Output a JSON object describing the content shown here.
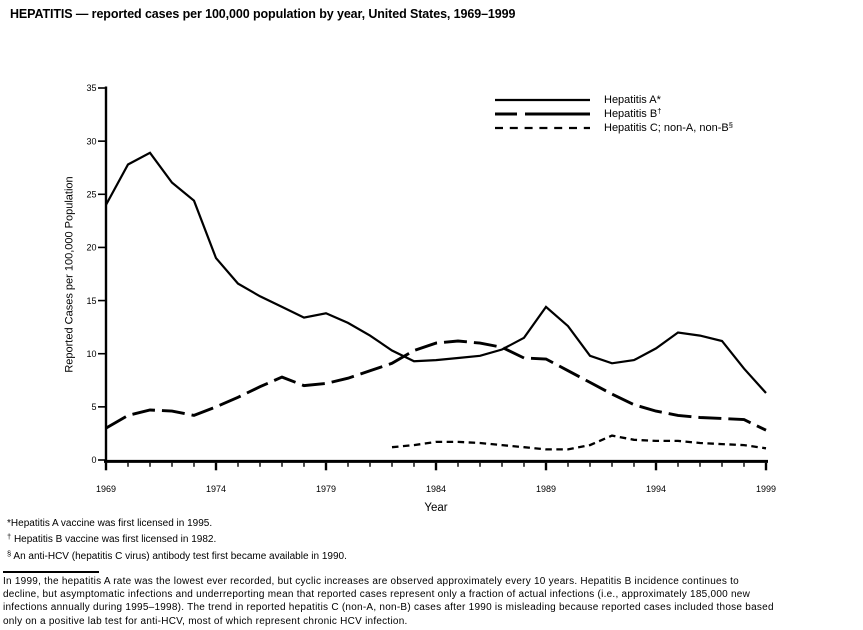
{
  "title": "HEPATITIS — reported cases per 100,000 population by year, United States, 1969–1999",
  "chart_data": {
    "type": "line",
    "title": "HEPATITIS — reported cases per 100,000 population by year, United States, 1969–1999",
    "xlabel": "Year",
    "ylabel": "Reported Cases per 100,000 Population",
    "xlim": [
      1969,
      1999
    ],
    "ylim": [
      0,
      35
    ],
    "y_ticks": [
      0,
      5,
      10,
      15,
      20,
      25,
      30,
      35
    ],
    "x_major_ticks": [
      1969,
      1974,
      1979,
      1984,
      1989,
      1994,
      1999
    ],
    "x_minor_tick_step": 1,
    "grid": false,
    "legend_position": "inside top-right",
    "line_color": "#000000",
    "series": [
      {
        "name": "Hepatitis A",
        "legend_label": "Hepatitis A*",
        "legend_sup": "",
        "line_style": "solid",
        "x_start": 1969,
        "x_step": 1,
        "values": [
          24.0,
          27.8,
          28.9,
          26.1,
          24.4,
          19.0,
          16.6,
          15.4,
          14.4,
          13.4,
          13.8,
          12.9,
          11.7,
          10.3,
          9.3,
          9.4,
          9.6,
          9.8,
          10.4,
          11.5,
          14.4,
          12.6,
          9.8,
          9.1,
          9.4,
          10.5,
          12.0,
          11.7,
          11.2,
          8.6,
          6.3
        ]
      },
      {
        "name": "Hepatitis B",
        "legend_label": "Hepatitis B",
        "legend_sup": "†",
        "line_style": "long-dash",
        "x_start": 1969,
        "x_step": 1,
        "values": [
          3.0,
          4.2,
          4.7,
          4.6,
          4.2,
          5.0,
          5.9,
          6.9,
          7.8,
          7.0,
          7.2,
          7.7,
          8.4,
          9.1,
          10.3,
          11.0,
          11.2,
          11.0,
          10.6,
          9.6,
          9.5,
          8.4,
          7.3,
          6.2,
          5.2,
          4.6,
          4.2,
          4.0,
          3.9,
          3.8,
          2.8
        ]
      },
      {
        "name": "Hepatitis C; non-A, non-B",
        "legend_label": "Hepatitis C; non-A, non-B",
        "legend_sup": "§",
        "line_style": "short-dash",
        "x_start": 1982,
        "x_step": 1,
        "values": [
          1.2,
          1.4,
          1.7,
          1.7,
          1.6,
          1.4,
          1.2,
          1.0,
          1.0,
          1.4,
          2.3,
          1.9,
          1.8,
          1.8,
          1.6,
          1.5,
          1.4,
          1.1
        ]
      }
    ]
  },
  "footnotes": [
    {
      "marker": "*",
      "superscript": false,
      "text": "Hepatitis A vaccine was first licensed in 1995."
    },
    {
      "marker": "†",
      "superscript": true,
      "text": " Hepatitis B vaccine was first licensed in 1982."
    },
    {
      "marker": "§",
      "superscript": true,
      "text": " An anti-HCV (hepatitis C virus) antibody test first became available in 1990."
    }
  ],
  "commentary_lines": [
    "In 1999, the hepatitis A rate was the lowest ever recorded, but cyclic increases are observed approximately every 10 years. Hepatitis B incidence continues to",
    "decline, but asymptomatic infections and underreporting mean that reported cases represent only a fraction of actual infections (i.e., approximately 185,000 new",
    "infections annually during 1995–1998). The trend in reported hepatitis C (non-A, non-B) cases after 1990 is misleading because reported cases included those based",
    "only on a positive lab test for anti-HCV, most of which represent chronic HCV infection."
  ]
}
